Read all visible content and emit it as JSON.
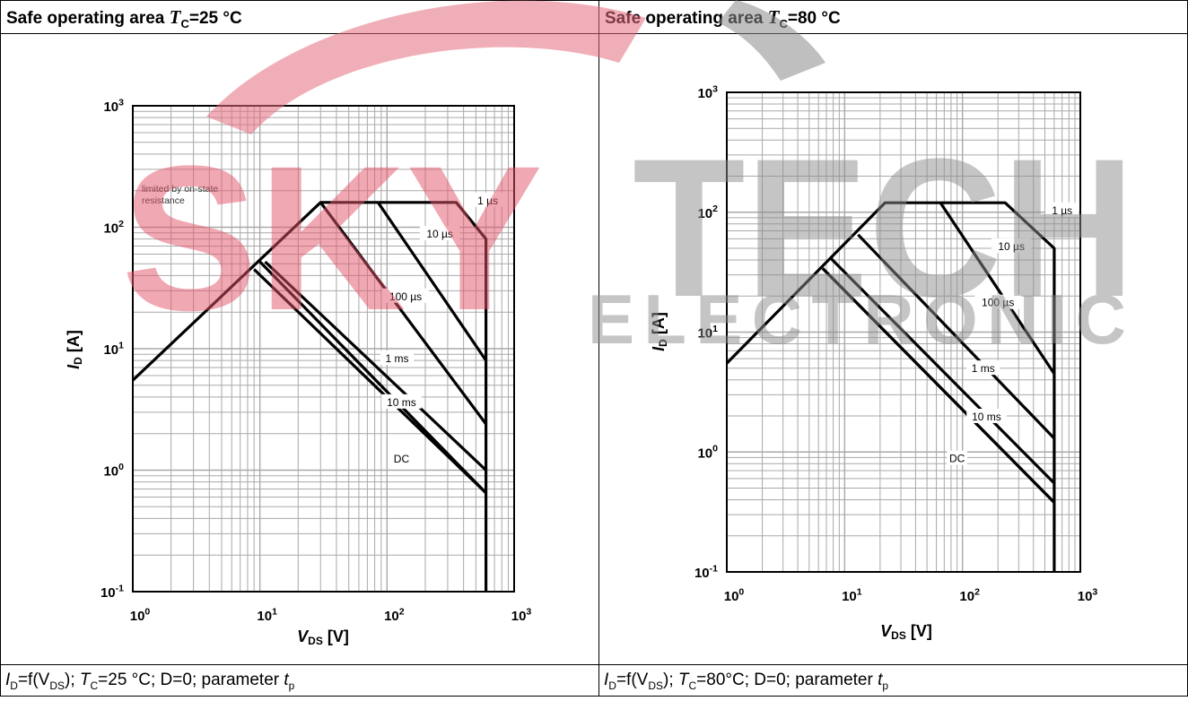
{
  "panels": [
    {
      "header": {
        "prefix": "Safe operating area ",
        "t": "T",
        "sub": "C",
        "suffix": "=25 °C"
      },
      "footer": {
        "i": "I",
        "isub": "D",
        "mid1": "=f(V",
        "vsub": "DS",
        "mid2": "); ",
        "t": "T",
        "tsub": "C",
        "mid3": "=25 °C; D=0; parameter ",
        "tp": "t",
        "tpsub": "p"
      }
    },
    {
      "header": {
        "prefix": "Safe operating area ",
        "t": "T",
        "sub": "C",
        "suffix": "=80 °C"
      },
      "footer": {
        "i": "I",
        "isub": "D",
        "mid1": "=f(V",
        "vsub": "DS",
        "mid2": "); ",
        "t": "T",
        "tsub": "C",
        "mid3": "=80°C; D=0; parameter ",
        "tp": "t",
        "tpsub": "p"
      }
    }
  ],
  "watermark": {
    "brand1": "SKY",
    "brand2": "TECH",
    "sub": "ELECTRONIC"
  },
  "chart_data": [
    {
      "type": "line",
      "xscale": "log",
      "yscale": "log",
      "xlim": [
        1,
        1000
      ],
      "ylim": [
        0.1,
        1000
      ],
      "xlabel": "V",
      "xlabel_sub": "DS",
      "xlabel_unit": " [V]",
      "ylabel": "I",
      "ylabel_sub": "D",
      "ylabel_unit": " [A]",
      "xticks": [
        "10^0",
        "10^1",
        "10^2",
        "10^3"
      ],
      "yticks": [
        "10^-1",
        "10^0",
        "10^1",
        "10^2",
        "10^3"
      ],
      "grid": true,
      "annotation": [
        "limited by on-state",
        "resistance"
      ],
      "series": [
        {
          "name": "1 µs",
          "points": [
            [
              1,
              5.5
            ],
            [
              30,
              160
            ],
            [
              350,
              160
            ],
            [
              600,
              80
            ],
            [
              600,
              0.1
            ]
          ]
        },
        {
          "name": "10 µs",
          "points": [
            [
              85,
              160
            ],
            [
              600,
              8
            ]
          ]
        },
        {
          "name": "100 µs",
          "points": [
            [
              30,
              160
            ],
            [
              600,
              2.4
            ]
          ]
        },
        {
          "name": "1 ms",
          "points": [
            [
              11,
              52
            ],
            [
              600,
              1.0
            ]
          ]
        },
        {
          "name": "10 ms",
          "points": [
            [
              10,
              52
            ],
            [
              600,
              0.65
            ]
          ]
        },
        {
          "name": "DC",
          "points": [
            [
              9,
              45
            ],
            [
              600,
              0.65
            ]
          ]
        }
      ],
      "labels": [
        {
          "text": "1 µs",
          "x": 620,
          "y": 160
        },
        {
          "text": "10 µs",
          "x": 260,
          "y": 85
        },
        {
          "text": "100 µs",
          "x": 140,
          "y": 26
        },
        {
          "text": "1 ms",
          "x": 120,
          "y": 8
        },
        {
          "text": "10 ms",
          "x": 130,
          "y": 3.5
        },
        {
          "text": "DC",
          "x": 130,
          "y": 1.2
        }
      ]
    },
    {
      "type": "line",
      "xscale": "log",
      "yscale": "log",
      "xlim": [
        1,
        1000
      ],
      "ylim": [
        0.1,
        1000
      ],
      "xlabel": "V",
      "xlabel_sub": "DS",
      "xlabel_unit": " [V]",
      "ylabel": "I",
      "ylabel_sub": "D",
      "ylabel_unit": " [A]",
      "xticks": [
        "10^0",
        "10^1",
        "10^2",
        "10^3"
      ],
      "yticks": [
        "10^-1",
        "10^0",
        "10^1",
        "10^2",
        "10^3"
      ],
      "grid": true,
      "series": [
        {
          "name": "1 µs",
          "points": [
            [
              1,
              5.5
            ],
            [
              22,
              120
            ],
            [
              230,
              120
            ],
            [
              600,
              50
            ],
            [
              600,
              0.1
            ]
          ]
        },
        {
          "name": "10 µs",
          "points": [
            [
              65,
              120
            ],
            [
              600,
              4.5
            ]
          ]
        },
        {
          "name": "100 µs",
          "points": [
            [
              13,
              65
            ],
            [
              600,
              1.3
            ]
          ]
        },
        {
          "name": "1 ms",
          "points": [
            [
              7.5,
              42
            ],
            [
              600,
              0.55
            ]
          ]
        },
        {
          "name": "10 ms",
          "points": [
            [
              6.5,
              34
            ],
            [
              600,
              0.38
            ]
          ]
        },
        {
          "name": "DC",
          "points": [
            [
              6.5,
              34
            ],
            [
              600,
              0.38
            ]
          ]
        }
      ],
      "labels": [
        {
          "text": "1 µs",
          "x": 700,
          "y": 100
        },
        {
          "text": "10 µs",
          "x": 260,
          "y": 50
        },
        {
          "text": "100 µs",
          "x": 200,
          "y": 17
        },
        {
          "text": "1 ms",
          "x": 150,
          "y": 4.8
        },
        {
          "text": "10 ms",
          "x": 160,
          "y": 1.9
        },
        {
          "text": "DC",
          "x": 90,
          "y": 0.85
        }
      ]
    }
  ]
}
